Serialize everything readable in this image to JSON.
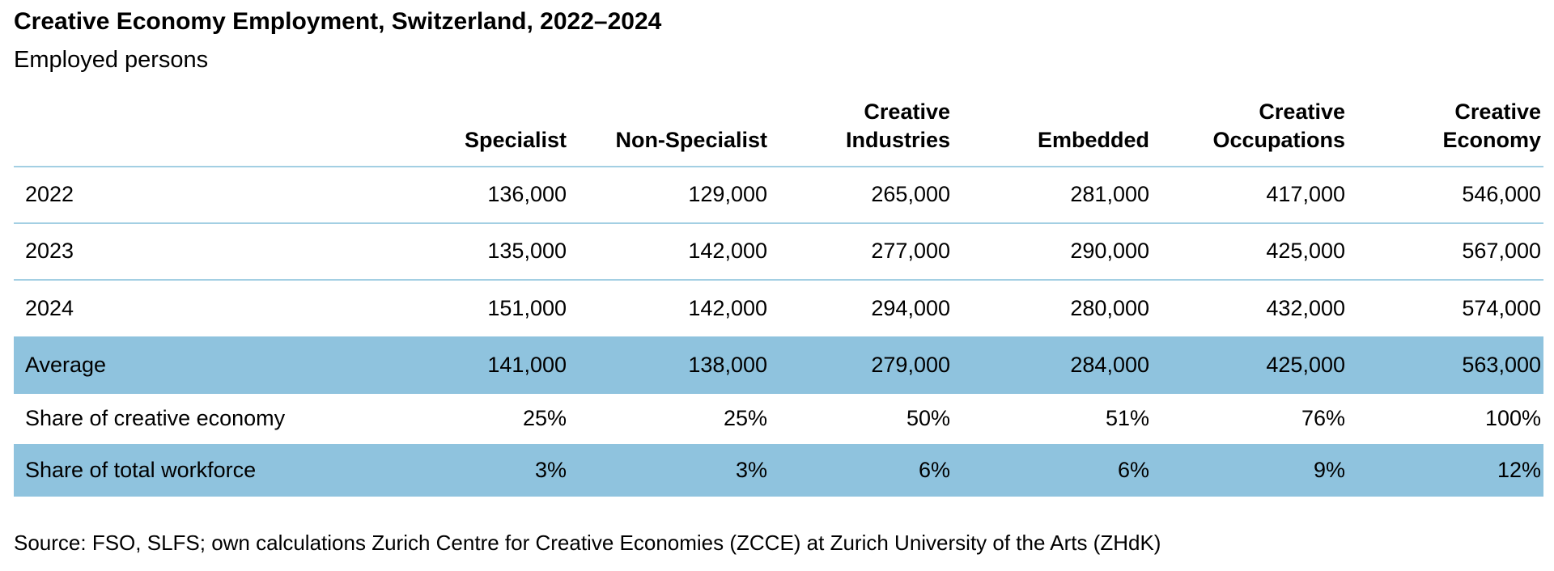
{
  "header": {
    "title": "Creative Economy Employment, Switzerland, 2022–2024",
    "subtitle": "Employed persons"
  },
  "table": {
    "row_label_header": "",
    "columns": [
      {
        "label": "Specialist",
        "label_lines": [
          "Specialist"
        ]
      },
      {
        "label": "Non-Specialist",
        "label_lines": [
          "Non-Specialist"
        ]
      },
      {
        "label": "Creative Industries",
        "label_lines": [
          "Creative",
          "Industries"
        ]
      },
      {
        "label": "Embedded",
        "label_lines": [
          "Embedded"
        ]
      },
      {
        "label": "Creative Occupations",
        "label_lines": [
          "Creative",
          "Occupations"
        ]
      },
      {
        "label": "Creative Economy",
        "label_lines": [
          "Creative",
          "Economy"
        ]
      }
    ],
    "rows": [
      {
        "label": "2022",
        "values": [
          "136,000",
          "129,000",
          "265,000",
          "281,000",
          "417,000",
          "546,000"
        ],
        "highlight": false
      },
      {
        "label": "2023",
        "values": [
          "135,000",
          "142,000",
          "277,000",
          "290,000",
          "425,000",
          "567,000"
        ],
        "highlight": false
      },
      {
        "label": "2024",
        "values": [
          "151,000",
          "142,000",
          "294,000",
          "280,000",
          "432,000",
          "574,000"
        ],
        "highlight": false
      },
      {
        "label": "Average",
        "values": [
          "141,000",
          "138,000",
          "279,000",
          "284,000",
          "425,000",
          "563,000"
        ],
        "highlight": true
      },
      {
        "label": "Share of creative economy",
        "values": [
          "25%",
          "25%",
          "50%",
          "51%",
          "76%",
          "100%"
        ],
        "highlight": false
      },
      {
        "label": "Share of total workforce",
        "values": [
          "3%",
          "3%",
          "6%",
          "6%",
          "9%",
          "12%"
        ],
        "highlight": true
      }
    ]
  },
  "footer": {
    "source": "Source: FSO, SLFS; own calculations Zurich Centre for Creative Economies (ZCCE) at Zurich University of the Arts (ZHdK)"
  },
  "colors": {
    "highlight_row": "#8FC3DE",
    "separator_line": "#A3CFE3",
    "text": "#000000",
    "background": "#FFFFFF"
  },
  "chart_data": {
    "type": "table",
    "title": "Creative Economy Employment, Switzerland, 2022–2024",
    "subtitle": "Employed persons",
    "columns": [
      "Specialist",
      "Non-Specialist",
      "Creative Industries",
      "Embedded",
      "Creative Occupations",
      "Creative Economy"
    ],
    "rows_employment": [
      {
        "label": "2022",
        "values": [
          136000,
          129000,
          265000,
          281000,
          417000,
          546000
        ]
      },
      {
        "label": "2023",
        "values": [
          135000,
          142000,
          277000,
          290000,
          425000,
          567000
        ]
      },
      {
        "label": "2024",
        "values": [
          151000,
          142000,
          294000,
          280000,
          432000,
          574000
        ]
      },
      {
        "label": "Average",
        "values": [
          141000,
          138000,
          279000,
          284000,
          425000,
          563000
        ]
      }
    ],
    "rows_shares_percent": [
      {
        "label": "Share of creative economy",
        "values": [
          25,
          25,
          50,
          51,
          76,
          100
        ]
      },
      {
        "label": "Share of total workforce",
        "values": [
          3,
          3,
          6,
          6,
          9,
          12
        ]
      }
    ],
    "source": "Source: FSO, SLFS; own calculations Zurich Centre for Creative Economies (ZCCE) at Zurich University of the Arts (ZHdK)"
  }
}
